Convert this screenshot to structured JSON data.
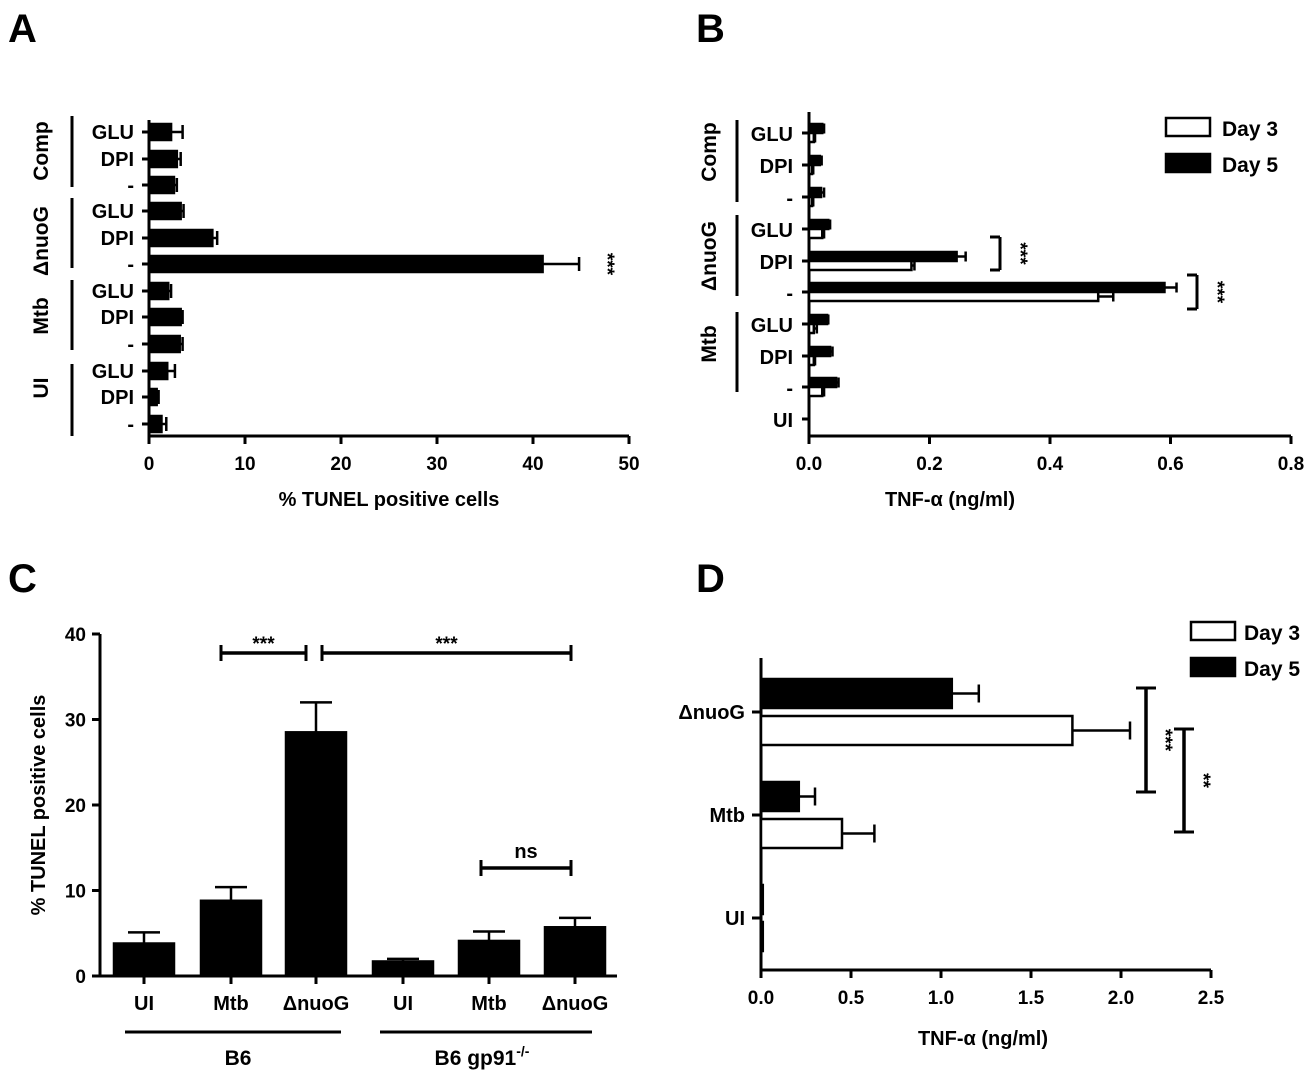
{
  "panels": [
    "A",
    "B",
    "C",
    "D"
  ],
  "charts": {
    "A": {
      "type": "bar",
      "orientation": "horizontal",
      "xlabel": "% TUNEL positive cells",
      "xlim": [
        0,
        50
      ],
      "xticks": [
        "0",
        "10",
        "20",
        "30",
        "40",
        "50"
      ],
      "categories": [
        "GLU",
        "DPI",
        "-",
        "GLU",
        "DPI",
        "-",
        "GLU",
        "DPI",
        "-",
        "GLU",
        "DPI",
        "-"
      ],
      "groups": [
        "Comp",
        "ΔnuoG",
        "Mtb",
        "UI"
      ],
      "values": [
        2.3,
        2.9,
        2.6,
        3.3,
        6.6,
        41,
        2.0,
        3.3,
        3.2,
        1.9,
        0.8,
        1.3
      ],
      "errors": [
        1.2,
        0.4,
        0.3,
        0.3,
        0.5,
        3.8,
        0.3,
        0.2,
        0.3,
        0.8,
        0.2,
        0.5
      ],
      "significance": "***"
    },
    "B": {
      "type": "bar",
      "orientation": "horizontal",
      "xlabel": "TNF-α (ng/ml)",
      "xlim": [
        0,
        0.8
      ],
      "xticks": [
        "0.0",
        "0.2",
        "0.4",
        "0.6",
        "0.8"
      ],
      "groups": [
        "Comp",
        "ΔnuoG",
        "Mtb"
      ],
      "categories": [
        "GLU",
        "DPI",
        "-",
        "GLU",
        "DPI",
        "-",
        "GLU",
        "DPI",
        "-",
        "UI"
      ],
      "series": [
        {
          "name": "Day 3",
          "values": [
            0.008,
            0.005,
            0.005,
            0.022,
            0.17,
            0.48,
            0.008,
            0.008,
            0.022,
            0.0
          ],
          "errors": [
            0.002,
            0.002,
            0.002,
            0.003,
            0.005,
            0.025,
            0.005,
            0.002,
            0.003,
            0.0
          ]
        },
        {
          "name": "Day 5",
          "values": [
            0.022,
            0.018,
            0.02,
            0.032,
            0.245,
            0.59,
            0.03,
            0.035,
            0.045,
            0.0
          ],
          "errors": [
            0.003,
            0.003,
            0.005,
            0.003,
            0.015,
            0.02,
            0.002,
            0.004,
            0.004,
            0.0
          ]
        }
      ],
      "significance": [
        "***",
        "***"
      ]
    },
    "C": {
      "type": "bar",
      "orientation": "vertical",
      "ylabel": "% TUNEL positive cells",
      "ylim": [
        0,
        40
      ],
      "yticks": [
        "0",
        "10",
        "20",
        "30",
        "40"
      ],
      "categories": [
        "UI",
        "Mtb",
        "ΔnuoG",
        "UI",
        "Mtb",
        "ΔnuoG"
      ],
      "values": [
        3.8,
        8.8,
        28.5,
        1.7,
        4.1,
        5.7
      ],
      "errors": [
        1.3,
        1.6,
        3.5,
        0.3,
        1.1,
        1.1
      ],
      "groups": [
        {
          "label": "B6"
        },
        {
          "label": "B6 gp91",
          "superscript": "-/-"
        }
      ],
      "significance": [
        "***",
        "***",
        "ns"
      ]
    },
    "D": {
      "type": "bar",
      "orientation": "horizontal",
      "xlabel": "TNF-α (ng/ml)",
      "xlim": [
        0,
        2.5
      ],
      "xticks": [
        "0.0",
        "0.5",
        "1.0",
        "1.5",
        "2.0",
        "2.5"
      ],
      "categories": [
        "ΔnuoG",
        "Mtb",
        "UI"
      ],
      "series": [
        {
          "name": "Day 3",
          "values": [
            1.73,
            0.45,
            0.01
          ],
          "errors": [
            0.32,
            0.18,
            0.0
          ]
        },
        {
          "name": "Day 5",
          "values": [
            1.06,
            0.21,
            0.01
          ],
          "errors": [
            0.15,
            0.09,
            0.0
          ]
        }
      ],
      "significance": [
        "***",
        "**"
      ]
    }
  },
  "chart_data": [
    {
      "panel": "A",
      "type": "bar",
      "xlabel": "% TUNEL positive cells",
      "xlim": [
        0,
        50
      ],
      "categories": [
        "Comp GLU",
        "Comp DPI",
        "Comp -",
        "ΔnuoG GLU",
        "ΔnuoG DPI",
        "ΔnuoG -",
        "Mtb GLU",
        "Mtb DPI",
        "Mtb -",
        "UI GLU",
        "UI DPI",
        "UI -"
      ],
      "values": [
        2.3,
        2.9,
        2.6,
        3.3,
        6.6,
        41,
        2.0,
        3.3,
        3.2,
        1.9,
        0.8,
        1.3
      ]
    },
    {
      "panel": "B",
      "type": "bar",
      "xlabel": "TNF-α (ng/ml)",
      "xlim": [
        0,
        0.8
      ],
      "categories": [
        "Comp GLU",
        "Comp DPI",
        "Comp -",
        "ΔnuoG GLU",
        "ΔnuoG DPI",
        "ΔnuoG -",
        "Mtb GLU",
        "Mtb DPI",
        "Mtb -",
        "UI"
      ],
      "series": [
        {
          "name": "Day 3",
          "values": [
            0.008,
            0.005,
            0.005,
            0.022,
            0.17,
            0.48,
            0.008,
            0.008,
            0.022,
            0.0
          ]
        },
        {
          "name": "Day 5",
          "values": [
            0.022,
            0.018,
            0.02,
            0.032,
            0.245,
            0.59,
            0.03,
            0.035,
            0.045,
            0.0
          ]
        }
      ]
    },
    {
      "panel": "C",
      "type": "bar",
      "ylabel": "% TUNEL positive cells",
      "ylim": [
        0,
        40
      ],
      "categories": [
        "B6 UI",
        "B6 Mtb",
        "B6 ΔnuoG",
        "B6 gp91-/- UI",
        "B6 gp91-/- Mtb",
        "B6 gp91-/- ΔnuoG"
      ],
      "values": [
        3.8,
        8.8,
        28.5,
        1.7,
        4.1,
        5.7
      ]
    },
    {
      "panel": "D",
      "type": "bar",
      "xlabel": "TNF-α (ng/ml)",
      "xlim": [
        0,
        2.5
      ],
      "categories": [
        "ΔnuoG",
        "Mtb",
        "UI"
      ],
      "series": [
        {
          "name": "Day 3",
          "values": [
            1.73,
            0.45,
            0.01
          ]
        },
        {
          "name": "Day 5",
          "values": [
            1.06,
            0.21,
            0.01
          ]
        }
      ]
    }
  ]
}
